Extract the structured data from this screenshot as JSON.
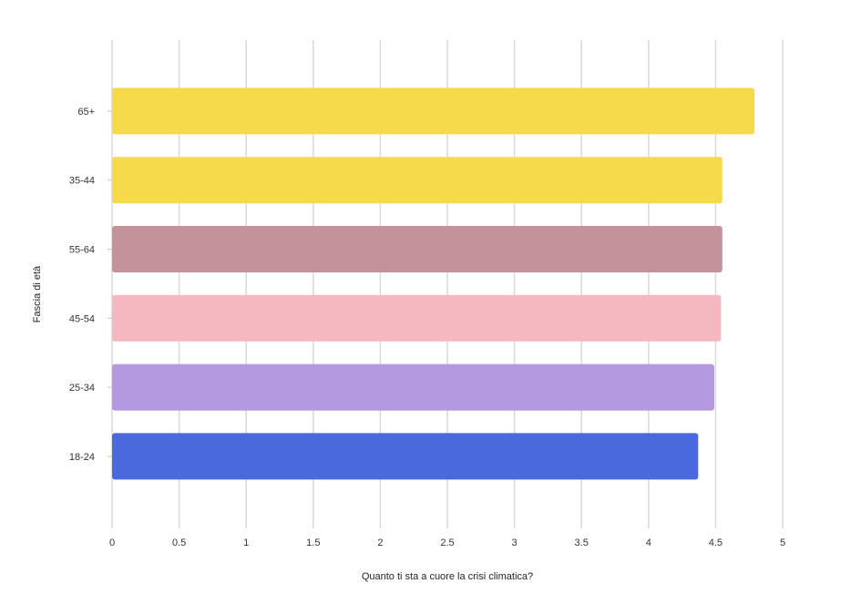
{
  "chart_data": {
    "type": "bar",
    "orientation": "horizontal",
    "categories": [
      "65+",
      "35-44",
      "55-64",
      "45-54",
      "25-34",
      "18-24"
    ],
    "values": [
      4.79,
      4.55,
      4.55,
      4.54,
      4.49,
      4.37
    ],
    "colors": [
      "#F7D94C",
      "#F7D94C",
      "#C4929A",
      "#F5B8C1",
      "#B599E0",
      "#4A69DD"
    ],
    "xlabel": "Quanto ti sta a cuore la crisi climatica?",
    "ylabel": "Fascia di età",
    "xlim": [
      0,
      5
    ],
    "xticks": [
      "0",
      "0.5",
      "1",
      "1.5",
      "2",
      "2.5",
      "3",
      "3.5",
      "4",
      "4.5",
      "5"
    ],
    "grid": true,
    "legend": "none"
  }
}
